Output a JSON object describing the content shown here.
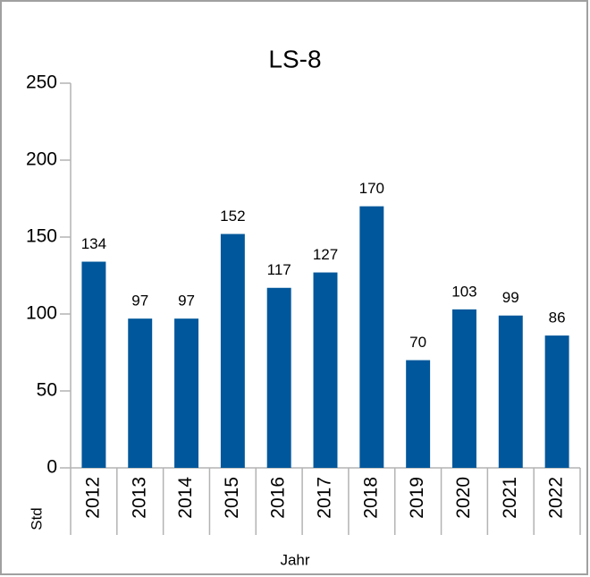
{
  "chart_data": {
    "type": "bar",
    "title": "LS-8",
    "categories": [
      "2012",
      "2013",
      "2014",
      "2015",
      "2016",
      "2017",
      "2018",
      "2019",
      "2020",
      "2021",
      "2022"
    ],
    "values": [
      134,
      97,
      97,
      152,
      117,
      127,
      170,
      70,
      103,
      99,
      86
    ],
    "color": "#00579b",
    "x_label": "Jahr",
    "y_label": "Std",
    "ylim": [
      0,
      250
    ],
    "yticks": [
      0,
      50,
      100,
      150,
      200,
      250
    ],
    "grid": false
  }
}
